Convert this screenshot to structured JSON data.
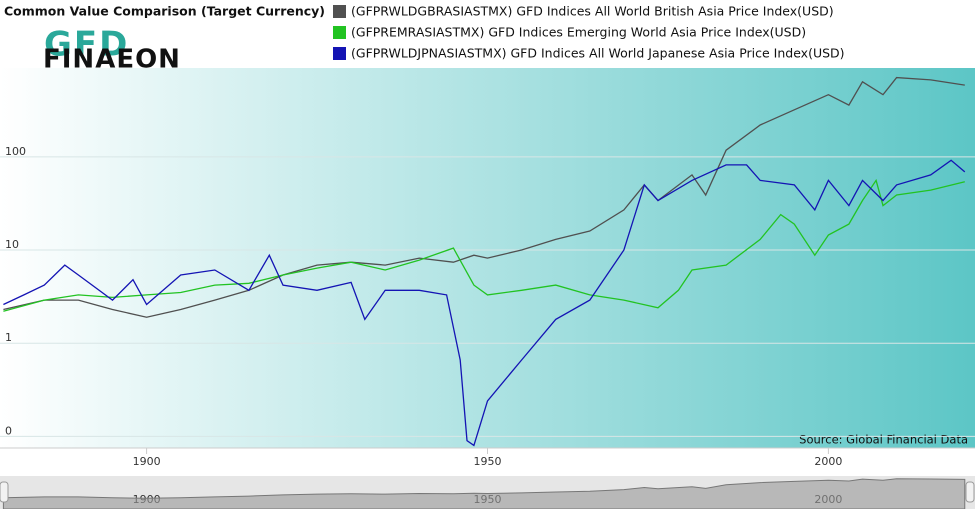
{
  "logo": {
    "top": "GFD",
    "bottom": "FINAEON"
  },
  "chart_data": {
    "type": "line",
    "title": "Common Value Comparison (Target Currency)",
    "source": "Source: Global Financial Data",
    "log_scale": true,
    "grid": true,
    "xlim": [
      1878.5,
      2021.5
    ],
    "xticks": [
      1900,
      1950,
      2000
    ],
    "ylim": [
      0.075,
      900
    ],
    "yticks": [
      {
        "value": 0.1,
        "label": "0"
      },
      1,
      10,
      100
    ],
    "series": [
      {
        "name": "(GFPRWLDGBRASIASTMX) GFD Indices All World British Asia Price Index(USD)",
        "color": "#505050",
        "x": [
          1879,
          1885,
          1890,
          1895,
          1900,
          1905,
          1910,
          1915,
          1920,
          1925,
          1930,
          1935,
          1940,
          1945,
          1948,
          1950,
          1955,
          1960,
          1965,
          1970,
          1973,
          1975,
          1980,
          1982,
          1985,
          1990,
          1995,
          2000,
          2003,
          2005,
          2008,
          2010,
          2015,
          2020
        ],
        "values": [
          2.3,
          2.9,
          2.9,
          2.3,
          1.9,
          2.3,
          2.9,
          3.7,
          5.4,
          6.9,
          7.4,
          6.9,
          8.2,
          7.4,
          8.8,
          8.2,
          10,
          13,
          16,
          27,
          50,
          34,
          64,
          39,
          118,
          220,
          320,
          465,
          360,
          640,
          465,
          710,
          670,
          590
        ]
      },
      {
        "name": "(GFPREMRASIASTMX) GFD Indices Emerging World Asia Price Index(USD)",
        "color": "#22c322",
        "x": [
          1879,
          1885,
          1890,
          1895,
          1900,
          1905,
          1910,
          1915,
          1920,
          1925,
          1930,
          1935,
          1940,
          1945,
          1948,
          1950,
          1955,
          1960,
          1965,
          1970,
          1975,
          1978,
          1980,
          1985,
          1990,
          1993,
          1995,
          1998,
          2000,
          2003,
          2005,
          2007,
          2008,
          2010,
          2015,
          2020
        ],
        "values": [
          2.2,
          2.9,
          3.3,
          3.1,
          3.3,
          3.5,
          4.2,
          4.4,
          5.4,
          6.4,
          7.4,
          6.1,
          7.8,
          10.5,
          4.2,
          3.3,
          3.7,
          4.2,
          3.3,
          2.9,
          2.4,
          3.7,
          6.1,
          6.9,
          13,
          24,
          19,
          8.8,
          14.5,
          19,
          34,
          56,
          30,
          39,
          44,
          54
        ]
      },
      {
        "name": "(GFPRWLDJPNASIASTMX) GFD Indices All World Japanese Asia Price Index(USD)",
        "color": "#1414b4",
        "x": [
          1879,
          1882,
          1885,
          1888,
          1890,
          1895,
          1898,
          1900,
          1905,
          1910,
          1915,
          1918,
          1920,
          1925,
          1930,
          1932,
          1935,
          1940,
          1944,
          1946,
          1947,
          1948,
          1950,
          1955,
          1960,
          1965,
          1970,
          1973,
          1975,
          1980,
          1985,
          1988,
          1990,
          1995,
          1998,
          2000,
          2003,
          2005,
          2008,
          2010,
          2015,
          2018,
          2020
        ],
        "values": [
          2.6,
          3.3,
          4.2,
          6.9,
          5.4,
          2.9,
          4.8,
          2.6,
          5.4,
          6.1,
          3.7,
          8.8,
          4.2,
          3.7,
          4.5,
          1.8,
          3.7,
          3.7,
          3.3,
          0.66,
          0.09,
          0.08,
          0.24,
          0.66,
          1.8,
          2.9,
          10,
          50,
          34,
          56,
          82,
          82,
          56,
          50,
          27,
          56,
          30,
          56,
          34,
          50,
          64,
          92,
          69
        ]
      }
    ]
  }
}
